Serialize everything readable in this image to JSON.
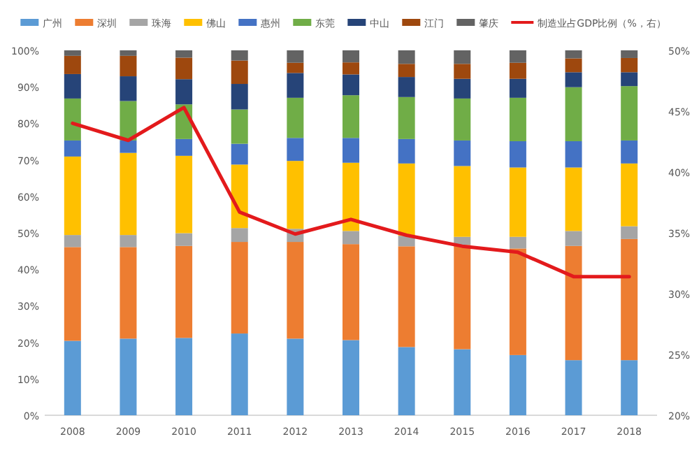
{
  "chart_data": {
    "type": "bar",
    "stacked": true,
    "categories": [
      "2008",
      "2009",
      "2010",
      "2011",
      "2012",
      "2013",
      "2014",
      "2015",
      "2016",
      "2017",
      "2018"
    ],
    "series": [
      {
        "name": "广州",
        "color": "#5b9bd5",
        "values": [
          20.4,
          21.0,
          21.2,
          22.4,
          21.0,
          20.6,
          18.7,
          18.1,
          16.5,
          15.1,
          15.1
        ]
      },
      {
        "name": "深圳",
        "color": "#ed7d31",
        "values": [
          25.7,
          25.1,
          25.2,
          25.1,
          26.5,
          26.3,
          27.6,
          28.6,
          29.2,
          31.3,
          33.2
        ]
      },
      {
        "name": "珠海",
        "color": "#a5a5a5",
        "values": [
          3.3,
          3.3,
          3.5,
          3.8,
          3.6,
          3.6,
          2.9,
          2.2,
          3.2,
          4.1,
          3.5
        ]
      },
      {
        "name": "佛山",
        "color": "#ffc000",
        "values": [
          21.5,
          22.5,
          21.2,
          17.4,
          18.6,
          18.7,
          19.8,
          19.4,
          19.0,
          17.4,
          17.2
        ]
      },
      {
        "name": "惠州",
        "color": "#4472c4",
        "values": [
          4.4,
          3.4,
          4.6,
          5.7,
          6.3,
          6.8,
          6.7,
          7.0,
          7.2,
          7.2,
          6.3
        ]
      },
      {
        "name": "东莞",
        "color": "#70ad47",
        "values": [
          11.5,
          10.8,
          9.5,
          9.4,
          11.0,
          11.7,
          11.5,
          11.5,
          11.9,
          14.8,
          14.9
        ]
      },
      {
        "name": "中山",
        "color": "#264478",
        "values": [
          6.7,
          6.8,
          6.9,
          7.0,
          6.8,
          5.7,
          5.5,
          5.4,
          5.2,
          4.1,
          3.8
        ]
      },
      {
        "name": "江门",
        "color": "#9e480e",
        "values": [
          5.0,
          5.6,
          5.9,
          6.4,
          2.8,
          3.3,
          3.6,
          4.1,
          4.4,
          3.8,
          3.9
        ]
      },
      {
        "name": "肇庆",
        "color": "#636363",
        "values": [
          1.5,
          1.5,
          2.0,
          2.8,
          3.4,
          3.3,
          3.7,
          3.7,
          3.4,
          2.2,
          2.1
        ]
      },
      {
        "name": "制造业占GDP比例（%，右）",
        "type": "line",
        "axis": "y2",
        "color": "#e31a1c",
        "values": [
          44.0,
          42.6,
          45.3,
          36.7,
          34.9,
          36.1,
          34.8,
          33.9,
          33.4,
          31.4,
          31.4
        ]
      }
    ],
    "ylim": [
      0,
      100
    ],
    "yticks": [
      {
        "value": 0,
        "label": "0%"
      },
      {
        "value": 10,
        "label": "10%"
      },
      {
        "value": 20,
        "label": "20%"
      },
      {
        "value": 30,
        "label": "30%"
      },
      {
        "value": 40,
        "label": "40%"
      },
      {
        "value": 50,
        "label": "50%"
      },
      {
        "value": 60,
        "label": "60%"
      },
      {
        "value": 70,
        "label": "70%"
      },
      {
        "value": 80,
        "label": "80%"
      },
      {
        "value": 90,
        "label": "90%"
      },
      {
        "value": 100,
        "label": "100%"
      }
    ],
    "y2lim": [
      20,
      50
    ],
    "y2ticks": [
      {
        "value": 20,
        "label": "20%"
      },
      {
        "value": 25,
        "label": "25%"
      },
      {
        "value": 30,
        "label": "30%"
      },
      {
        "value": 35,
        "label": "35%"
      },
      {
        "value": 40,
        "label": "40%"
      },
      {
        "value": 45,
        "label": "45%"
      },
      {
        "value": 50,
        "label": "50%"
      }
    ],
    "legend": "top",
    "grid": false
  }
}
